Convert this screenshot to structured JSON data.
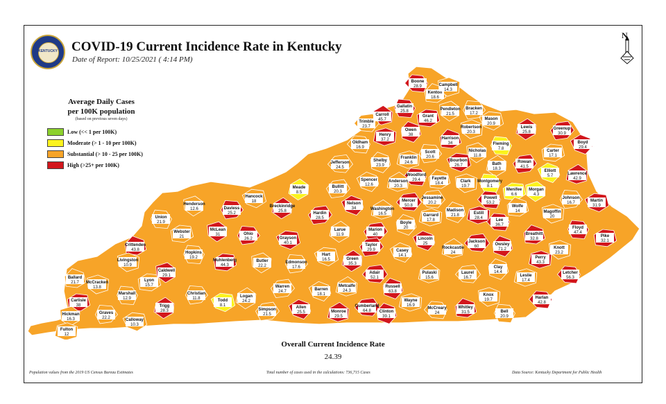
{
  "header": {
    "title": "COVID-19 Current Incidence Rate in Kentucky",
    "date": "Date of Report: 10/25/2021 ( 4:14 PM)",
    "seal_text": "KENTUCKY"
  },
  "north_label": "N",
  "legend": {
    "title_line1": "Average Daily Cases",
    "title_line2": "per 100K population",
    "note": "(based on previous seven days)",
    "items": [
      {
        "label": "Low (<< 1 per 100K)",
        "color": "#8cd12c"
      },
      {
        "label": "Moderate (> 1 - 10 per 100K)",
        "color": "#fbf31d"
      },
      {
        "label": "Substantial (> 10 - 25 per 100K)",
        "color": "#f7a428"
      },
      {
        "label": "High (>25+ per 100K)",
        "color": "#d2161c"
      }
    ]
  },
  "colors": {
    "low": "#8cd12c",
    "moderate": "#fbf31d",
    "substantial": "#f7a428",
    "high": "#d2161c",
    "border": "#ffffff"
  },
  "map_data": {
    "counties": [
      {
        "name": "Boone",
        "value": "28.9",
        "level": "high"
      },
      {
        "name": "Kenton",
        "value": "18.6",
        "level": "substantial"
      },
      {
        "name": "Campbell",
        "value": "14.3",
        "level": "substantial"
      },
      {
        "name": "Gallatin",
        "value": "25.8",
        "level": "high"
      },
      {
        "name": "Grant",
        "value": "46.2",
        "level": "high"
      },
      {
        "name": "Pendleton",
        "value": "21.5",
        "level": "substantial"
      },
      {
        "name": "Bracken",
        "value": "17.2",
        "level": "substantial"
      },
      {
        "name": "Mason",
        "value": "20.9",
        "level": "substantial"
      },
      {
        "name": "Lewis",
        "value": "25.8",
        "level": "high"
      },
      {
        "name": "Greenup",
        "value": "30.9",
        "level": "high"
      },
      {
        "name": "Boyd",
        "value": "29.4",
        "level": "high"
      },
      {
        "name": "Carroll",
        "value": "45.7",
        "level": "high"
      },
      {
        "name": "Trimble",
        "value": "23.7",
        "level": "substantial"
      },
      {
        "name": "Owen",
        "value": "38",
        "level": "high"
      },
      {
        "name": "Henry",
        "value": "37.2",
        "level": "high"
      },
      {
        "name": "Oldham",
        "value": "16.9",
        "level": "substantial"
      },
      {
        "name": "Harrison",
        "value": "34",
        "level": "high"
      },
      {
        "name": "Robertson",
        "value": "20.3",
        "level": "substantial"
      },
      {
        "name": "Fleming",
        "value": "7.8",
        "level": "moderate"
      },
      {
        "name": "Carter",
        "value": "17.1",
        "level": "substantial"
      },
      {
        "name": "Nicholas",
        "value": "11.8",
        "level": "substantial"
      },
      {
        "name": "Scott",
        "value": "20.6",
        "level": "substantial"
      },
      {
        "name": "Bourbon",
        "value": "26.7",
        "level": "high"
      },
      {
        "name": "Bath",
        "value": "18.3",
        "level": "substantial"
      },
      {
        "name": "Rowan",
        "value": "41.5",
        "level": "high"
      },
      {
        "name": "Elliott",
        "value": "5.7",
        "level": "moderate"
      },
      {
        "name": "Lawrence",
        "value": "42.9",
        "level": "high"
      },
      {
        "name": "Jefferson",
        "value": "24.5",
        "level": "substantial"
      },
      {
        "name": "Shelby",
        "value": "23.9",
        "level": "substantial"
      },
      {
        "name": "Franklin",
        "value": "24.6",
        "level": "substantial"
      },
      {
        "name": "Woodford",
        "value": "29.4",
        "level": "high"
      },
      {
        "name": "Fayette",
        "value": "18.4",
        "level": "substantial"
      },
      {
        "name": "Clark",
        "value": "19.7",
        "level": "substantial"
      },
      {
        "name": "Montgomery",
        "value": "8.1",
        "level": "moderate"
      },
      {
        "name": "Menifee",
        "value": "6.6",
        "level": "moderate"
      },
      {
        "name": "Morgan",
        "value": "4.3",
        "level": "moderate"
      },
      {
        "name": "Johnson",
        "value": "16.7",
        "level": "substantial"
      },
      {
        "name": "Martin",
        "value": "31.9",
        "level": "high"
      },
      {
        "name": "Meade",
        "value": "8.5",
        "level": "moderate"
      },
      {
        "name": "Bullitt",
        "value": "20.3",
        "level": "substantial"
      },
      {
        "name": "Spencer",
        "value": "12.6",
        "level": "substantial"
      },
      {
        "name": "Anderson",
        "value": "20.3",
        "level": "substantial"
      },
      {
        "name": "Jessamine",
        "value": "20.2",
        "level": "substantial"
      },
      {
        "name": "Madison",
        "value": "21.8",
        "level": "substantial"
      },
      {
        "name": "Estill",
        "value": "28.4",
        "level": "high"
      },
      {
        "name": "Powell",
        "value": "53.2",
        "level": "high"
      },
      {
        "name": "Wolfe",
        "value": "14",
        "level": "substantial"
      },
      {
        "name": "Magoffin",
        "value": "20",
        "level": "substantial"
      },
      {
        "name": "Floyd",
        "value": "47.4",
        "level": "high"
      },
      {
        "name": "Pike",
        "value": "32.1",
        "level": "high"
      },
      {
        "name": "Henderson",
        "value": "12.6",
        "level": "substantial"
      },
      {
        "name": "Daviess",
        "value": "25.2",
        "level": "high"
      },
      {
        "name": "Hancock",
        "value": "18",
        "level": "substantial"
      },
      {
        "name": "Breckinridge",
        "value": "25.8",
        "level": "high"
      },
      {
        "name": "Hardin",
        "value": "28.5",
        "level": "high"
      },
      {
        "name": "Nelson",
        "value": "34",
        "level": "high"
      },
      {
        "name": "Washington",
        "value": "16.5",
        "level": "substantial"
      },
      {
        "name": "Mercer",
        "value": "50.8",
        "level": "high"
      },
      {
        "name": "Boyle",
        "value": "20",
        "level": "substantial"
      },
      {
        "name": "Garrard",
        "value": "17.8",
        "level": "substantial"
      },
      {
        "name": "Lee",
        "value": "36.7",
        "level": "high"
      },
      {
        "name": "Breathitt",
        "value": "32.8",
        "level": "high"
      },
      {
        "name": "Knott",
        "value": "23.2",
        "level": "substantial"
      },
      {
        "name": "Union",
        "value": "21.9",
        "level": "substantial"
      },
      {
        "name": "Webster",
        "value": "21",
        "level": "substantial"
      },
      {
        "name": "McLean",
        "value": "31",
        "level": "high"
      },
      {
        "name": "Ohio",
        "value": "26.2",
        "level": "high"
      },
      {
        "name": "Grayson",
        "value": "40.1",
        "level": "high"
      },
      {
        "name": "Larue",
        "value": "11.9",
        "level": "substantial"
      },
      {
        "name": "Marion",
        "value": "40",
        "level": "high"
      },
      {
        "name": "Lincoln",
        "value": "25",
        "level": "high"
      },
      {
        "name": "Rockcastle",
        "value": "24",
        "level": "substantial"
      },
      {
        "name": "Jackson",
        "value": "60",
        "level": "high"
      },
      {
        "name": "Owsley",
        "value": "71.2",
        "level": "high"
      },
      {
        "name": "Perry",
        "value": "43.3",
        "level": "high"
      },
      {
        "name": "Letcher",
        "value": "56.3",
        "level": "high"
      },
      {
        "name": "Crittenden",
        "value": "43.8",
        "level": "high"
      },
      {
        "name": "Livingston",
        "value": "10.9",
        "level": "substantial"
      },
      {
        "name": "Hopkins",
        "value": "19.2",
        "level": "substantial"
      },
      {
        "name": "Muhlenberg",
        "value": "44.3",
        "level": "high"
      },
      {
        "name": "Butler",
        "value": "22.2",
        "level": "substantial"
      },
      {
        "name": "Edmonson",
        "value": "17.6",
        "level": "substantial"
      },
      {
        "name": "Hart",
        "value": "16.5",
        "level": "substantial"
      },
      {
        "name": "Green",
        "value": "35.3",
        "level": "high"
      },
      {
        "name": "Taylor",
        "value": "29.9",
        "level": "high"
      },
      {
        "name": "Casey",
        "value": "14.1",
        "level": "substantial"
      },
      {
        "name": "Pulaski",
        "value": "15.6",
        "level": "substantial"
      },
      {
        "name": "Laurel",
        "value": "16.7",
        "level": "substantial"
      },
      {
        "name": "Clay",
        "value": "14.4",
        "level": "substantial"
      },
      {
        "name": "Leslie",
        "value": "17.4",
        "level": "substantial"
      },
      {
        "name": "Harlan",
        "value": "42.8",
        "level": "high"
      },
      {
        "name": "Ballard",
        "value": "21.7",
        "level": "substantial"
      },
      {
        "name": "McCracken",
        "value": "13.8",
        "level": "substantial"
      },
      {
        "name": "Marshall",
        "value": "12.9",
        "level": "substantial"
      },
      {
        "name": "Lyon",
        "value": "15.7",
        "level": "substantial"
      },
      {
        "name": "Caldwell",
        "value": "29.1",
        "level": "high"
      },
      {
        "name": "Christian",
        "value": "11.8",
        "level": "substantial"
      },
      {
        "name": "Todd",
        "value": "8.1",
        "level": "moderate"
      },
      {
        "name": "Logan",
        "value": "24.2",
        "level": "substantial"
      },
      {
        "name": "Warren",
        "value": "24.7",
        "level": "substantial"
      },
      {
        "name": "Barren",
        "value": "18.1",
        "level": "substantial"
      },
      {
        "name": "Metcalfe",
        "value": "24.3",
        "level": "substantial"
      },
      {
        "name": "Adair",
        "value": "52.1",
        "level": "high"
      },
      {
        "name": "Russell",
        "value": "63.8",
        "level": "high"
      },
      {
        "name": "Wayne",
        "value": "16.9",
        "level": "substantial"
      },
      {
        "name": "McCreary",
        "value": "24",
        "level": "substantial"
      },
      {
        "name": "Whitley",
        "value": "31.5",
        "level": "high"
      },
      {
        "name": "Knox",
        "value": "19.7",
        "level": "substantial"
      },
      {
        "name": "Bell",
        "value": "20.9",
        "level": "substantial"
      },
      {
        "name": "Carlisle",
        "value": "38",
        "level": "high"
      },
      {
        "name": "Hickman",
        "value": "16.3",
        "level": "substantial"
      },
      {
        "name": "Graves",
        "value": "22.2",
        "level": "substantial"
      },
      {
        "name": "Calloway",
        "value": "10.3",
        "level": "substantial"
      },
      {
        "name": "Trigg",
        "value": "28.3",
        "level": "high"
      },
      {
        "name": "Simpson",
        "value": "21.5",
        "level": "substantial"
      },
      {
        "name": "Allen",
        "value": "25.5",
        "level": "high"
      },
      {
        "name": "Monroe",
        "value": "29.5",
        "level": "high"
      },
      {
        "name": "Cumberland",
        "value": "64.8",
        "level": "high"
      },
      {
        "name": "Clinton",
        "value": "39.1",
        "level": "high"
      },
      {
        "name": "Fulton",
        "value": "12",
        "level": "substantial"
      }
    ]
  },
  "overall": {
    "label": "Overall Current Incidence Rate",
    "value": "24.39"
  },
  "footer": {
    "left": "Population values from the 2019 US Census Bureau Estimates",
    "center": "Total number of cases used in the calculations: 736,715 Cases",
    "right": "Data Source: Kentucky Department for Public Health"
  }
}
